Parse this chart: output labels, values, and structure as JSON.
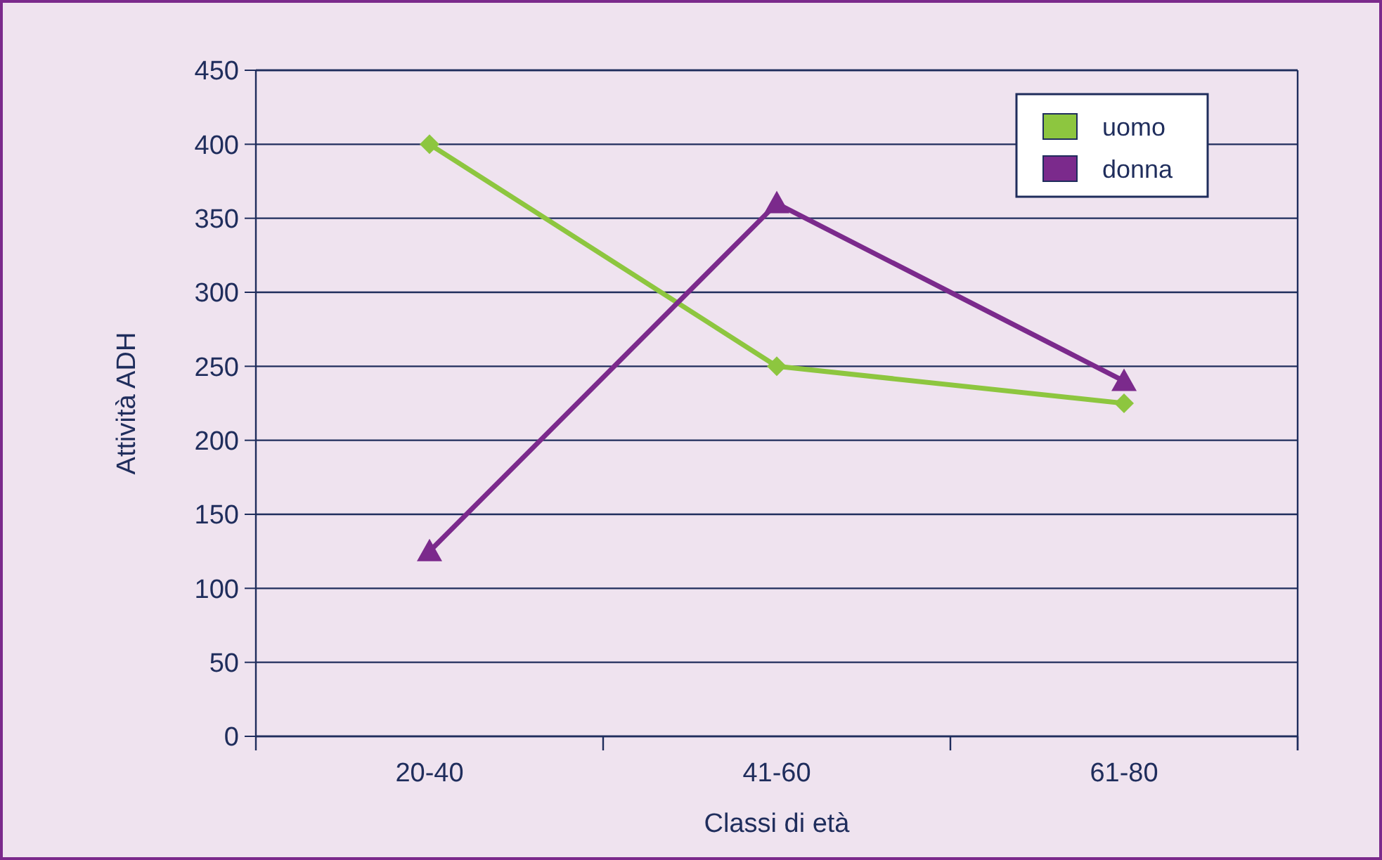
{
  "chart_data": {
    "type": "line",
    "xlabel": "Classi di età",
    "ylabel": "Attività ADH",
    "categories": [
      "20-40",
      "41-60",
      "61-80"
    ],
    "series": [
      {
        "name": "uomo",
        "color": "#8dc63f",
        "values": [
          400,
          250,
          225
        ],
        "marker": "diamond"
      },
      {
        "name": "donna",
        "color": "#7b2a8c",
        "values": [
          125,
          360,
          240
        ],
        "marker": "triangle"
      }
    ],
    "ylim": [
      0,
      450
    ],
    "yticks": [
      0,
      50,
      100,
      150,
      200,
      250,
      300,
      350,
      400,
      450
    ],
    "grid": "y",
    "legend": "top right"
  }
}
